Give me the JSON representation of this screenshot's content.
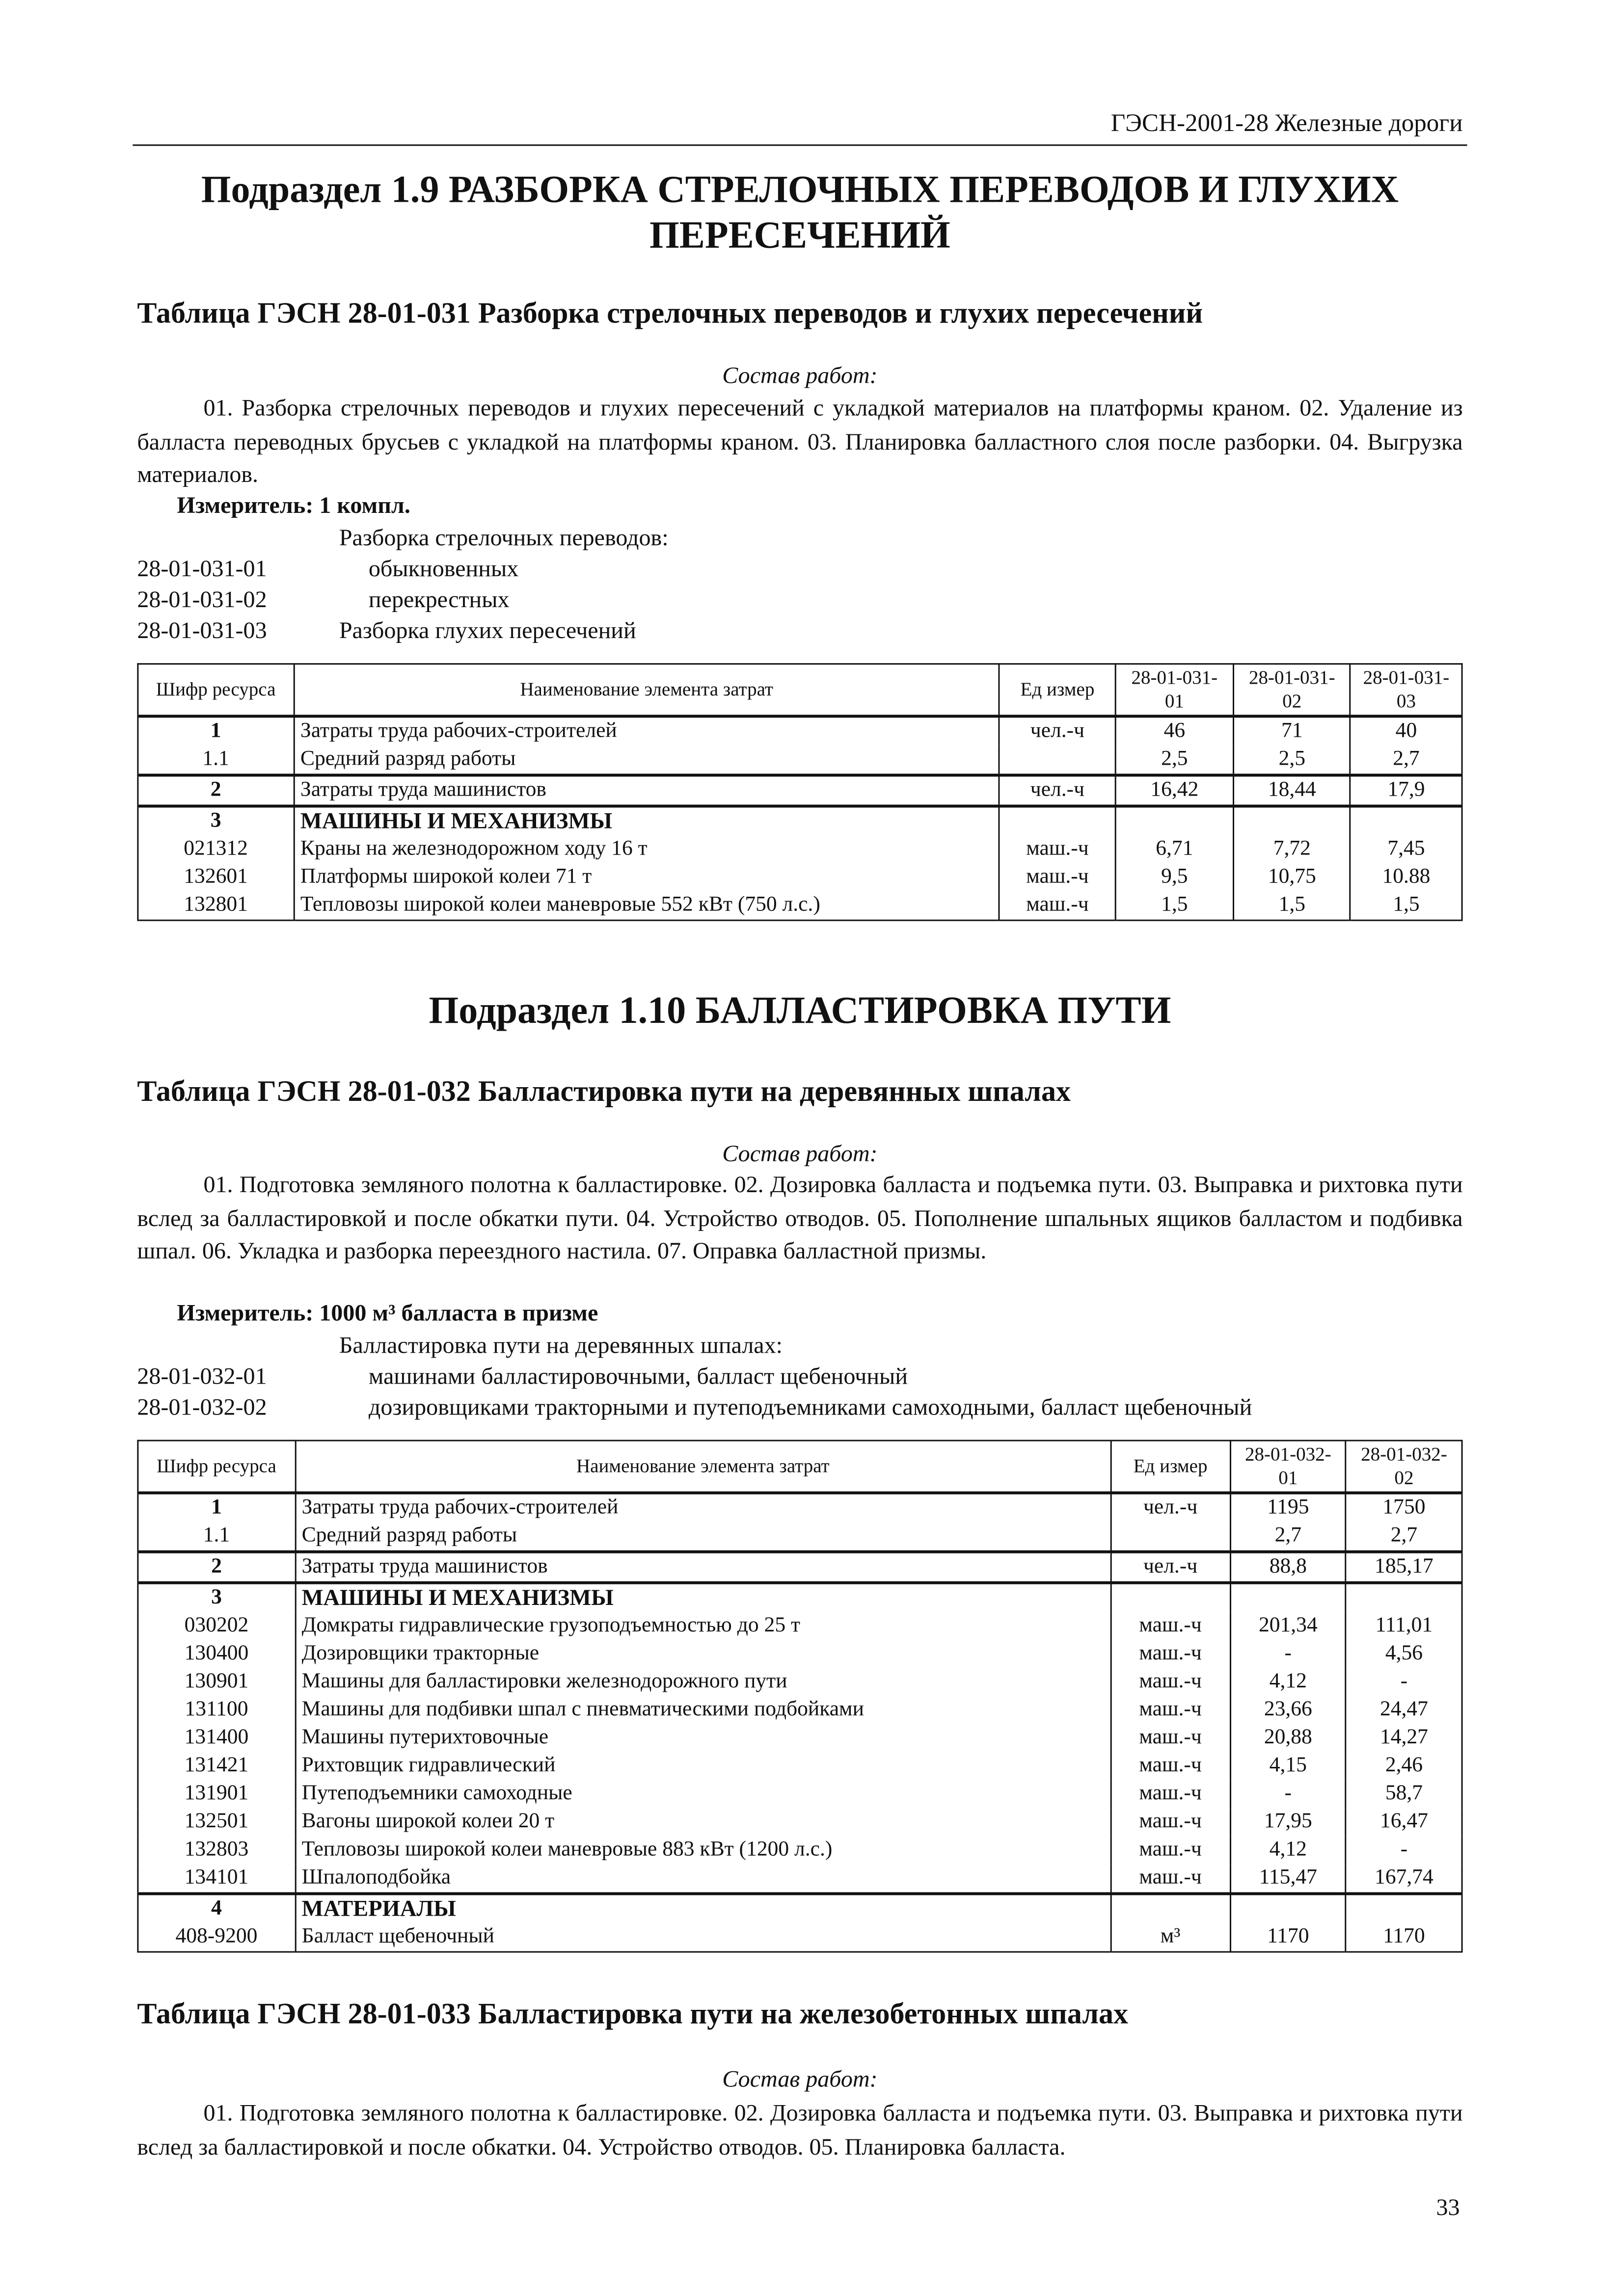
{
  "header": "ГЭСН-2001-28 Железные дороги",
  "s19": {
    "title1": "Подраздел 1.9 РАЗБОРКА СТРЕЛОЧНЫХ ПЕРЕВОДОВ И ГЛУХИХ",
    "title2": "ПЕРЕСЕЧЕНИЙ"
  },
  "t031": {
    "title": "Таблица ГЭСН 28-01-031 Разборка стрелочных переводов и глухих пересечений",
    "sostav": "Состав работ:",
    "para": "01. Разборка стрелочных переводов и глухих пересечений с укладкой материалов на платформы краном. 02. Удаление из балласта переводных брусьев с укладкой на платформы краном. 03. Планировка балластного слоя после разборки. 04. Выгрузка материалов.",
    "measure": "Измеритель:   1 компл.",
    "group": "Разборка стрелочных переводов:",
    "list": [
      {
        "code": "28-01-031-01",
        "text": "обыкновенных"
      },
      {
        "code": "28-01-031-02",
        "text": "перекрестных"
      },
      {
        "code": "28-01-031-03",
        "text": "Разборка глухих пересечений"
      }
    ],
    "headers": [
      "Шифр ресурса",
      "Наименование элемента затрат",
      "Ед  измер",
      "28-01-031-01",
      "28-01-031-02",
      "28-01-031-03"
    ],
    "groups": [
      [
        [
          "1",
          "Затраты труда рабочих-строителей",
          "чел.-ч",
          "46",
          "71",
          "40"
        ],
        [
          "1.1",
          "Средний разряд работы",
          "",
          "2,5",
          "2,5",
          "2,7"
        ]
      ],
      [
        [
          "2",
          "Затраты труда машинистов",
          "чел.-ч",
          "16,42",
          "18,44",
          "17,9"
        ]
      ],
      [
        [
          "3",
          "МАШИНЫ И МЕХАНИЗМЫ",
          "",
          "",
          "",
          ""
        ],
        [
          "021312",
          "Краны на железнодорожном ходу 16 т",
          "маш.-ч",
          "6,71",
          "7,72",
          "7,45"
        ],
        [
          "132601",
          "Платформы широкой колеи 71 т",
          "маш.-ч",
          "9,5",
          "10,75",
          "10.88"
        ],
        [
          "132801",
          "Тепловозы широкой колеи маневровые 552 кВт (750 л.с.)",
          "маш.-ч",
          "1,5",
          "1,5",
          "1,5"
        ]
      ]
    ]
  },
  "s110": {
    "title": "Подраздел 1.10 БАЛЛАСТИРОВКА ПУТИ"
  },
  "t032": {
    "title": "Таблица ГЭСН 28-01-032 Балластировка пути на деревянных шпалах",
    "sostav": "Состав работ:",
    "para": "01. Подготовка земляного полотна к балластировке. 02. Дозировка балласта и подъемка пути. 03. Выправка и рихтовка пути вслед за балластировкой и после обкатки пути. 04. Устройство отводов. 05. Пополнение шпальных ящиков балластом и подбивка шпал. 06. Укладка и разборка переездного настила. 07. Оправка балластной призмы.",
    "measure": "Измеритель:   1000 м³ балласта в призме",
    "group": "Балластировка пути на деревянных шпалах:",
    "list": [
      {
        "code": "28-01-032-01",
        "text": "машинами балластировочными, балласт щебеночный"
      },
      {
        "code": "28-01-032-02",
        "text": "дозировщиками тракторными и путеподъемниками самоходными, балласт щебеночный"
      }
    ],
    "headers": [
      "Шифр ресурса",
      "Наименование элемента затрат",
      "Ед  измер",
      "28-01-032-01",
      "28-01-032-02"
    ],
    "groups": [
      [
        [
          "1",
          "Затраты труда рабочих-строителей",
          "чел.-ч",
          "1195",
          "1750"
        ],
        [
          "1.1",
          "Средний разряд работы",
          "",
          "2,7",
          "2,7"
        ]
      ],
      [
        [
          "2",
          "Затраты труда машинистов",
          "чел.-ч",
          "88,8",
          "185,17"
        ]
      ],
      [
        [
          "3",
          "МАШИНЫ И МЕХАНИЗМЫ",
          "",
          "",
          ""
        ],
        [
          "030202",
          "Домкраты гидравлические грузоподъемностью до 25 т",
          "маш.-ч",
          "201,34",
          "111,01"
        ],
        [
          "130400",
          "Дозировщики тракторные",
          "маш.-ч",
          "-",
          "4,56"
        ],
        [
          "130901",
          "Машины для балластировки железнодорожного пути",
          "маш.-ч",
          "4,12",
          "-"
        ],
        [
          "131100",
          "Машины для подбивки шпал с пневматическими подбойками",
          "маш.-ч",
          "23,66",
          "24,47"
        ],
        [
          "131400",
          "Машины путерихтовочные",
          "маш.-ч",
          "20,88",
          "14,27"
        ],
        [
          "131421",
          "Рихтовщик гидравлический",
          "маш.-ч",
          "4,15",
          "2,46"
        ],
        [
          "131901",
          "Путеподъемники самоходные",
          "маш.-ч",
          "-",
          "58,7"
        ],
        [
          "132501",
          "Вагоны широкой колеи 20 т",
          "маш.-ч",
          "17,95",
          "16,47"
        ],
        [
          "132803",
          "Тепловозы широкой колеи маневровые 883 кВт (1200 л.с.)",
          "маш.-ч",
          "4,12",
          "-"
        ],
        [
          "134101",
          "Шпалоподбойка",
          "маш.-ч",
          "115,47",
          "167,74"
        ]
      ],
      [
        [
          "4",
          "МАТЕРИАЛЫ",
          "",
          "",
          ""
        ],
        [
          "408-9200",
          "Балласт щебеночный",
          "м³",
          "1170",
          "1170"
        ]
      ]
    ]
  },
  "t033": {
    "title": "Таблица ГЭСН 28-01-033 Балластировка пути на железобетонных шпалах",
    "sostav": "Состав работ:",
    "para": "01. Подготовка земляного полотна к балластировке. 02. Дозировка балласта и подъемка пути. 03. Выправка и рихтовка пути вслед за балластировкой и после обкатки. 04. Устройство отводов. 05. Планировка балласта."
  },
  "page_number": "33"
}
